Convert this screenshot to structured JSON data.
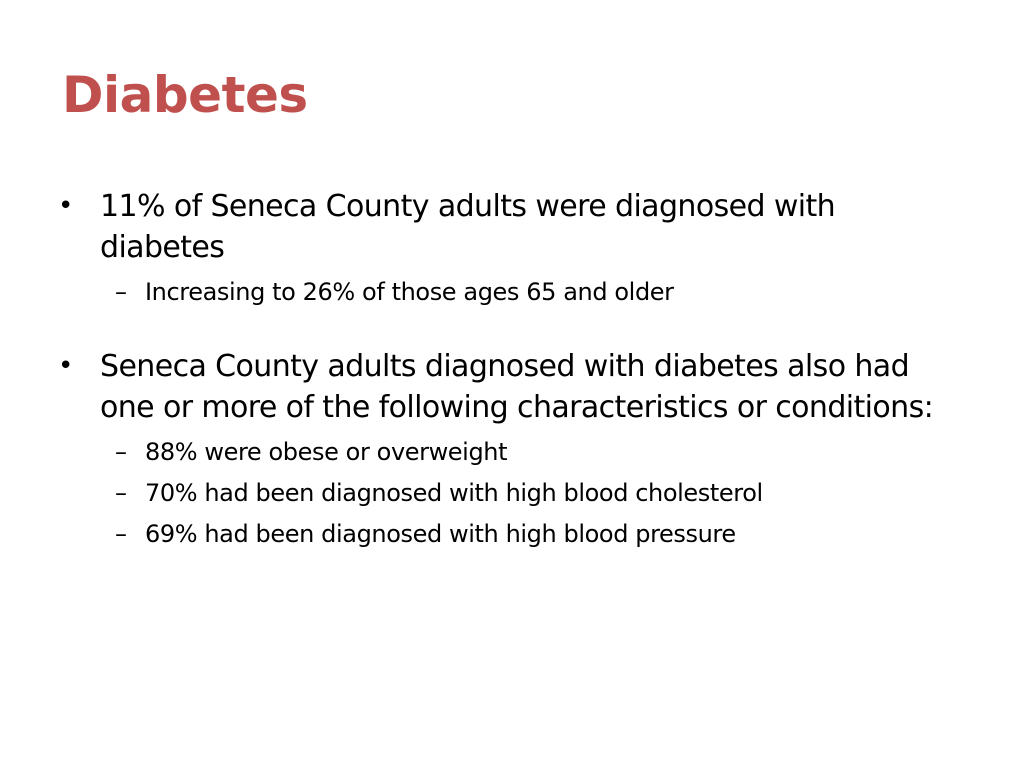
{
  "title": "Diabetes",
  "colors": {
    "title": "#c0504d",
    "text": "#000000",
    "background": "#ffffff"
  },
  "bullets": [
    {
      "text": "11% of Seneca County adults were diagnosed with diabetes",
      "subitems": [
        "Increasing to 26% of those ages 65 and older"
      ]
    },
    {
      "text": "Seneca County adults diagnosed with diabetes also had one or more of the following characteristics or conditions:",
      "subitems": [
        "88% were obese or overweight",
        "70% had been diagnosed with high blood cholesterol",
        "69% had been diagnosed with high blood pressure"
      ]
    }
  ]
}
